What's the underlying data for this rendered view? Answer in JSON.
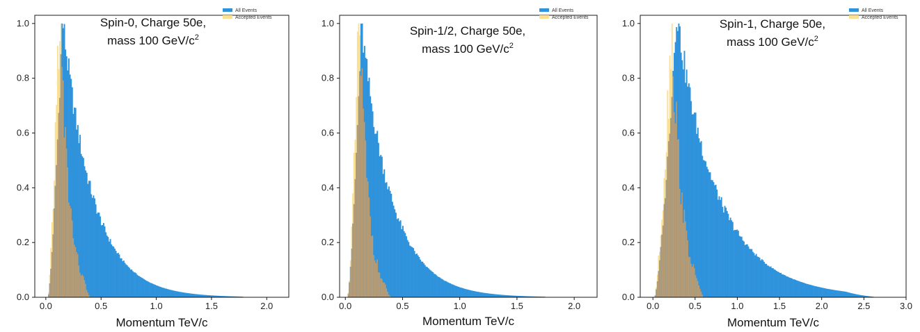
{
  "colors": {
    "all_events": "#2f93dc",
    "accepted_events": "#f9e094",
    "overlap": "#b79b73",
    "axes": "#000000"
  },
  "chart_data": [
    {
      "type": "bar",
      "title_line1": "Spin-0, Charge 50e,",
      "title_line2": "mass 100 GeV/c",
      "title_superscript": "2",
      "xlabel": "Momentum  TeV/c",
      "ylabel": "",
      "xlim": [
        -0.1,
        2.2
      ],
      "ylim": [
        0,
        1.03
      ],
      "xticks": [
        "0.0",
        "0.5",
        "1.0",
        "1.5",
        "2.0"
      ],
      "yticks": [
        "0.0",
        "0.2",
        "0.4",
        "0.6",
        "0.8",
        "1.0"
      ],
      "legend": [
        "All Events",
        "Accepted Events"
      ],
      "legend_position": "top-right",
      "grid": false,
      "series": [
        {
          "name": "All Events",
          "shape": {
            "x_start": 0.02,
            "x_peak": 0.15,
            "x_end": 2.05,
            "width": 0.31,
            "shape": 1.0
          }
        },
        {
          "name": "Accepted Events",
          "shape": {
            "x_start": 0.02,
            "x_peak": 0.12,
            "x_end": 0.4,
            "width": 0.1,
            "shape": 1.1,
            "peak": 1.0
          }
        }
      ]
    },
    {
      "type": "bar",
      "title_line1": "Spin-1/2, Charge 50e,",
      "title_line2": "mass 100 GeV/c",
      "title_superscript": "2",
      "xlabel": "Momentum  TeV/c",
      "ylabel": "",
      "xlim": [
        -0.05,
        2.2
      ],
      "ylim": [
        0,
        1.03
      ],
      "xticks": [
        "0.0",
        "0.5",
        "1.0",
        "1.5",
        "2.0"
      ],
      "yticks": [
        "0.0",
        "0.2",
        "0.4",
        "0.6",
        "0.8",
        "1.0"
      ],
      "legend": [
        "All Events",
        "Accepted Events"
      ],
      "legend_position": "top-right",
      "grid": false,
      "series": [
        {
          "name": "All Events",
          "shape": {
            "x_start": 0.02,
            "x_peak": 0.14,
            "x_end": 2.05,
            "width": 0.3,
            "shape": 1.0
          }
        },
        {
          "name": "Accepted Events",
          "shape": {
            "x_start": 0.02,
            "x_peak": 0.12,
            "x_end": 0.4,
            "width": 0.09,
            "shape": 1.1,
            "peak": 1.0
          }
        }
      ]
    },
    {
      "type": "bar",
      "title_line1": "Spin-1, Charge 50e,",
      "title_line2": "mass 100 GeV/c",
      "title_superscript": "2",
      "xlabel": "Momentum  TeV/c",
      "ylabel": "",
      "xlim": [
        -0.15,
        3.0
      ],
      "ylim": [
        0,
        1.03
      ],
      "xticks": [
        "0.0",
        "0.5",
        "1.0",
        "1.5",
        "2.0",
        "2.5",
        "3.0"
      ],
      "yticks": [
        "0.0",
        "0.2",
        "0.4",
        "0.6",
        "0.8",
        "1.0"
      ],
      "legend": [
        "All Events",
        "Accepted Events"
      ],
      "legend_position": "top-right",
      "grid": false,
      "series": [
        {
          "name": "All Events",
          "shape": {
            "x_start": 0.02,
            "x_peak": 0.28,
            "x_end": 2.68,
            "width": 0.55,
            "shape": 0.95
          }
        },
        {
          "name": "Accepted Events",
          "shape": {
            "x_start": 0.02,
            "x_peak": 0.22,
            "x_end": 0.6,
            "width": 0.14,
            "shape": 1.1,
            "peak": 1.0
          }
        }
      ]
    }
  ]
}
